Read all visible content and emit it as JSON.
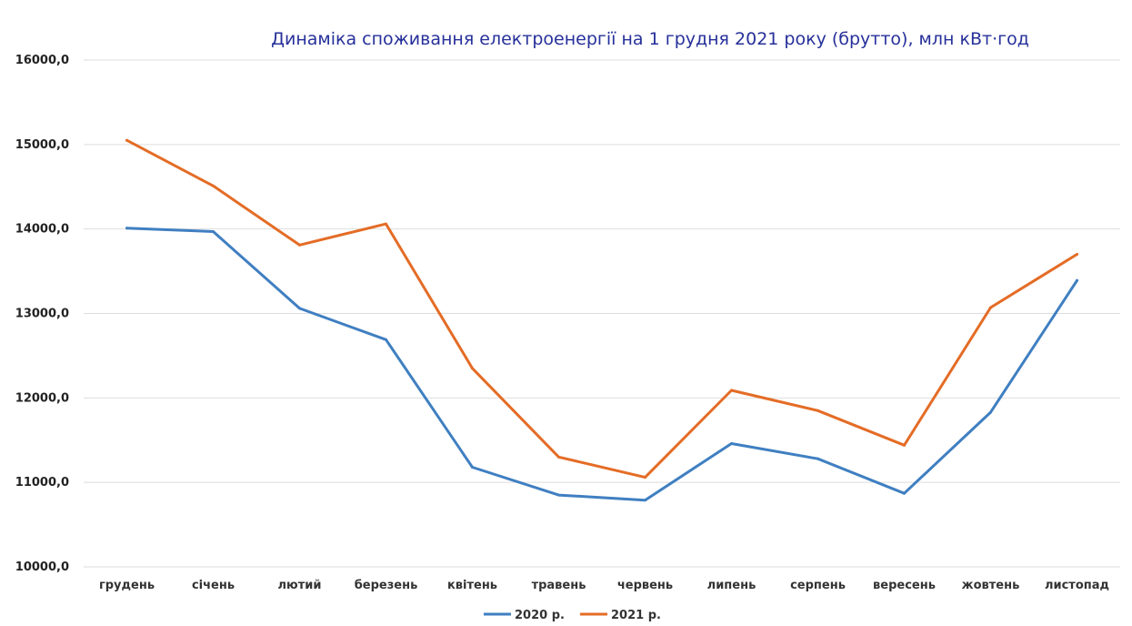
{
  "chart_data": {
    "type": "line",
    "title": "Динаміка споживання електроенергії на 1 грудня 2021 року (брутто), млн кВт·год",
    "categories": [
      "грудень",
      "січень",
      "лютий",
      "березень",
      "квітень",
      "травень",
      "червень",
      "липень",
      "серпень",
      "вересень",
      "жовтень",
      "листопад"
    ],
    "series": [
      {
        "name": "2020 р.",
        "color": "#3f7fc1",
        "values": [
          14010,
          13970,
          13060,
          12690,
          11180,
          10850,
          10790,
          11460,
          11280,
          10870,
          11830,
          13390
        ]
      },
      {
        "name": "2021 р.",
        "color": "#e46c26",
        "values": [
          15050,
          14510,
          13810,
          14060,
          12350,
          11300,
          11060,
          12090,
          11850,
          11440,
          13070,
          13700
        ]
      }
    ],
    "ylim": [
      10000,
      16000
    ],
    "yticks": [
      10000,
      11000,
      12000,
      13000,
      14000,
      15000,
      16000
    ],
    "ytick_labels": [
      "10000,0",
      "11000,0",
      "12000,0",
      "13000,0",
      "14000,0",
      "15000,0",
      "16000,0"
    ],
    "xlabel": "",
    "ylabel": "",
    "grid": true,
    "legend": "bottom-center"
  }
}
